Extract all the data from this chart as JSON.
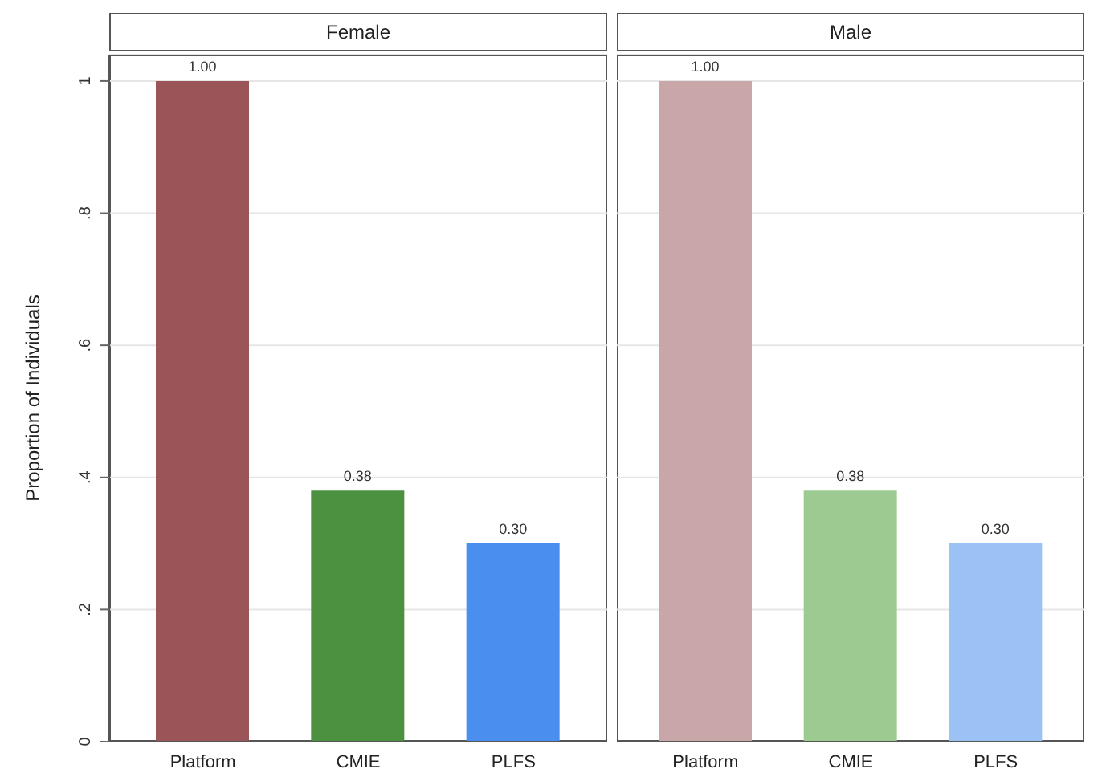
{
  "chart_data": [
    {
      "type": "bar",
      "title": "Female",
      "ylabel": "Proportion of Individuals",
      "categories": [
        "Platform",
        "CMIE",
        "PLFS"
      ],
      "values": [
        1.0,
        0.38,
        0.3
      ],
      "colors": [
        "#9b5457",
        "#4c9140",
        "#4a8ef0"
      ],
      "value_labels": [
        "1.00",
        "0.38",
        "0.30"
      ],
      "ylim": [
        0,
        1.04
      ],
      "yticks": [
        {
          "value": 0,
          "label": "0"
        },
        {
          "value": 0.2,
          "label": ".2"
        },
        {
          "value": 0.4,
          "label": ".4"
        },
        {
          "value": 0.6,
          "label": ".6"
        },
        {
          "value": 0.8,
          "label": ".8"
        },
        {
          "value": 1,
          "label": "1"
        }
      ],
      "grid": "y"
    },
    {
      "type": "bar",
      "title": "Male",
      "categories": [
        "Platform",
        "CMIE",
        "PLFS"
      ],
      "values": [
        1.0,
        0.38,
        0.3
      ],
      "colors": [
        "#c9a7a9",
        "#9dca91",
        "#9cc2f5"
      ],
      "value_labels": [
        "1.00",
        "0.38",
        "0.30"
      ],
      "ylim": [
        0,
        1.04
      ],
      "yticks": [
        {
          "value": 0,
          "label": null
        },
        {
          "value": 0.2,
          "label": null
        },
        {
          "value": 0.4,
          "label": null
        },
        {
          "value": 0.6,
          "label": null
        },
        {
          "value": 0.8,
          "label": null
        },
        {
          "value": 1,
          "label": null
        }
      ],
      "grid": "y",
      "tick_labels": "x"
    }
  ]
}
